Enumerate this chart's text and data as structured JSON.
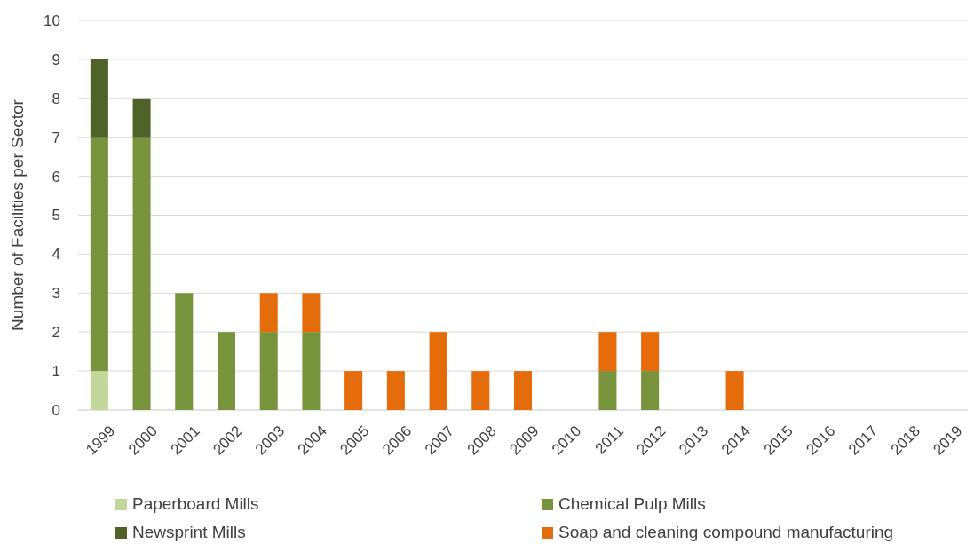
{
  "chart_data": {
    "type": "bar",
    "stacked": true,
    "ylabel": "Number of Facilities per Sector",
    "categories": [
      "1999",
      "2000",
      "2001",
      "2002",
      "2003",
      "2004",
      "2005",
      "2006",
      "2007",
      "2008",
      "2009",
      "2010",
      "2011",
      "2012",
      "2013",
      "2014",
      "2015",
      "2016",
      "2017",
      "2018",
      "2019"
    ],
    "series": [
      {
        "name": "Paperboard Mills",
        "color": "#c4d79b",
        "values": [
          1,
          0,
          0,
          0,
          0,
          0,
          0,
          0,
          0,
          0,
          0,
          0,
          0,
          0,
          0,
          0,
          0,
          0,
          0,
          0,
          0
        ]
      },
      {
        "name": "Chemical Pulp Mills",
        "color": "#77933c",
        "values": [
          6,
          7,
          3,
          2,
          2,
          2,
          0,
          0,
          0,
          0,
          0,
          0,
          1,
          1,
          0,
          0,
          0,
          0,
          0,
          0,
          0
        ]
      },
      {
        "name": "Newsprint Mills",
        "color": "#4f6228",
        "values": [
          2,
          1,
          0,
          0,
          0,
          0,
          0,
          0,
          0,
          0,
          0,
          0,
          0,
          0,
          0,
          0,
          0,
          0,
          0,
          0,
          0
        ]
      },
      {
        "name": "Soap and cleaning compound manufacturing",
        "color": "#e46c0a",
        "values": [
          0,
          0,
          0,
          0,
          1,
          1,
          1,
          1,
          2,
          1,
          1,
          0,
          1,
          1,
          0,
          1,
          0,
          0,
          0,
          0,
          0
        ]
      }
    ],
    "ylim": [
      0,
      10
    ],
    "yticks": [
      0,
      1,
      2,
      3,
      4,
      5,
      6,
      7,
      8,
      9,
      10
    ],
    "grid": "y",
    "legend": "bottom"
  }
}
